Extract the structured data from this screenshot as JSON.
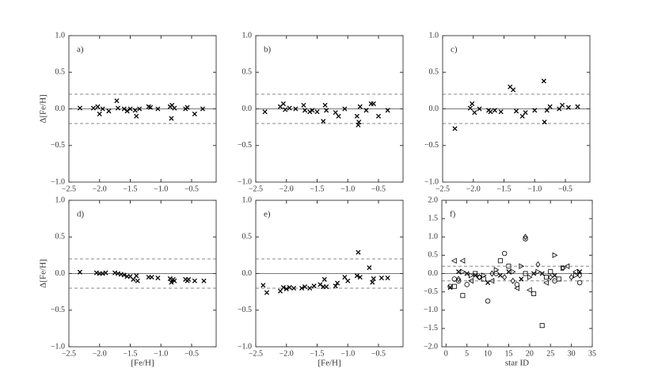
{
  "chart_data": [
    {
      "type": "scatter",
      "panel_label": "a)",
      "ylabel": "Δ[Fe/H]",
      "xlim": [
        -2.5,
        -0.1
      ],
      "ylim": [
        -1.0,
        1.0
      ],
      "xticks": [
        {
          "value": -2.5,
          "label": "−2.5"
        },
        {
          "value": -2.0,
          "label": "−2.0"
        },
        {
          "value": -1.5,
          "label": "−1.5"
        },
        {
          "value": -1.0,
          "label": "−1.0"
        },
        {
          "value": -0.5,
          "label": "−0.5"
        }
      ],
      "yticks": [
        {
          "value": -1.0,
          "label": "−1.0"
        },
        {
          "value": -0.5,
          "label": "−0.5"
        },
        {
          "value": 0.0,
          "label": "0.0"
        },
        0.5,
        {
          "value": 1.0,
          "label": "1.0"
        }
      ],
      "zero_line": 0,
      "dashed_lines": [
        0.2,
        -0.2
      ],
      "series": [
        {
          "marker": "x",
          "color": "#000",
          "x": [
            -2.32,
            -2.1,
            -2.03,
            -2.0,
            -1.95,
            -1.85,
            -1.72,
            -1.7,
            -1.6,
            -1.55,
            -1.5,
            -1.42,
            -1.4,
            -1.35,
            -1.2,
            -1.17,
            -1.05,
            -0.85,
            -0.83,
            -0.82,
            -0.78,
            -0.6,
            -0.57,
            -0.45,
            -0.32
          ],
          "y": [
            0.01,
            0.01,
            0.03,
            -0.07,
            0.0,
            -0.03,
            0.11,
            0.01,
            0.0,
            -0.03,
            0.0,
            -0.02,
            -0.1,
            0.0,
            0.03,
            0.02,
            0.0,
            0.03,
            -0.13,
            0.05,
            0.01,
            0.0,
            0.02,
            -0.07,
            0.0
          ]
        }
      ]
    },
    {
      "type": "scatter",
      "panel_label": "b)",
      "xlim": [
        -2.5,
        -0.1
      ],
      "ylim": [
        -1.0,
        1.0
      ],
      "xticks": [
        {
          "value": -2.5,
          "label": "−2.5"
        },
        {
          "value": -2.0,
          "label": "−2.0"
        },
        {
          "value": -1.5,
          "label": "−1.5"
        },
        {
          "value": -1.0,
          "label": "−1.0"
        },
        {
          "value": -0.5,
          "label": "−0.5"
        }
      ],
      "yticks": [
        {
          "value": -1.0,
          "label": "−1.0"
        },
        {
          "value": -0.5,
          "label": "−0.5"
        },
        {
          "value": 0.0,
          "label": "0.0"
        },
        0.5,
        {
          "value": 1.0,
          "label": "1.0"
        }
      ],
      "zero_line": 0,
      "dashed_lines": [
        0.2,
        -0.2
      ],
      "series": [
        {
          "marker": "x",
          "color": "#000",
          "x": [
            -2.35,
            -2.1,
            -2.05,
            -2.02,
            -1.95,
            -1.85,
            -1.72,
            -1.7,
            -1.62,
            -1.58,
            -1.5,
            -1.4,
            -1.37,
            -1.35,
            -1.2,
            -1.15,
            -1.05,
            -0.85,
            -0.83,
            -0.82,
            -0.8,
            -0.7,
            -0.62,
            -0.58,
            -0.5,
            -0.35
          ],
          "y": [
            -0.04,
            0.03,
            0.07,
            -0.01,
            0.01,
            0.0,
            0.05,
            -0.02,
            -0.04,
            -0.02,
            -0.04,
            -0.17,
            0.05,
            -0.02,
            -0.05,
            -0.1,
            0.0,
            -0.1,
            -0.22,
            -0.18,
            0.03,
            -0.02,
            0.07,
            0.07,
            -0.1,
            -0.02
          ]
        }
      ]
    },
    {
      "type": "scatter",
      "panel_label": "c)",
      "xlim": [
        -2.5,
        -0.1
      ],
      "ylim": [
        -1.0,
        1.0
      ],
      "xticks": [
        {
          "value": -2.5,
          "label": "−2.5"
        },
        {
          "value": -2.0,
          "label": "−2.0"
        },
        {
          "value": -1.5,
          "label": "−1.5"
        },
        {
          "value": -1.0,
          "label": "−1.0"
        },
        {
          "value": -0.5,
          "label": "−0.5"
        }
      ],
      "yticks": [
        {
          "value": -1.0,
          "label": "−1.0"
        },
        {
          "value": -0.5,
          "label": "−0.5"
        },
        {
          "value": 0.0,
          "label": "0.0"
        },
        0.5,
        {
          "value": 1.0,
          "label": "1.0"
        }
      ],
      "zero_line": 0,
      "dashed_lines": [
        0.2,
        -0.2
      ],
      "series": [
        {
          "marker": "x",
          "color": "#000",
          "x": [
            -2.3,
            -2.05,
            -2.02,
            -1.98,
            -1.9,
            -1.75,
            -1.72,
            -1.65,
            -1.55,
            -1.4,
            -1.35,
            -1.3,
            -1.2,
            -1.15,
            -1.0,
            -0.85,
            -0.84,
            -0.8,
            -0.75,
            -0.6,
            -0.55,
            -0.45,
            -0.3
          ],
          "y": [
            -0.27,
            0.01,
            0.07,
            -0.05,
            0.0,
            -0.02,
            -0.04,
            -0.02,
            -0.04,
            0.3,
            0.26,
            -0.03,
            -0.1,
            -0.05,
            -0.02,
            0.38,
            -0.18,
            -0.02,
            0.03,
            0.0,
            0.05,
            0.02,
            0.03
          ]
        }
      ]
    },
    {
      "type": "scatter",
      "panel_label": "d)",
      "ylabel": "Δ[Fe/H]",
      "xlabel": "[Fe/H]",
      "xlim": [
        -2.5,
        -0.1
      ],
      "ylim": [
        -1.0,
        1.0
      ],
      "xticks": [
        {
          "value": -2.5,
          "label": "−2.5"
        },
        {
          "value": -2.0,
          "label": "−2.0"
        },
        {
          "value": -1.5,
          "label": "−1.5"
        },
        {
          "value": -1.0,
          "label": "−1.0"
        },
        {
          "value": -0.5,
          "label": "−0.5"
        }
      ],
      "yticks": [
        {
          "value": -1.0,
          "label": "−1.0"
        },
        {
          "value": -0.5,
          "label": "−0.5"
        },
        {
          "value": 0.0,
          "label": "0.0"
        },
        0.5,
        {
          "value": 1.0,
          "label": "1.0"
        }
      ],
      "zero_line": 0,
      "dashed_lines": [
        0.2,
        -0.2
      ],
      "series": [
        {
          "marker": "x",
          "color": "#000",
          "x": [
            -2.32,
            -2.05,
            -2.0,
            -1.95,
            -1.9,
            -1.75,
            -1.7,
            -1.65,
            -1.6,
            -1.55,
            -1.5,
            -1.45,
            -1.4,
            -1.38,
            -1.2,
            -1.15,
            -1.05,
            -0.85,
            -0.83,
            -0.8,
            -0.78,
            -0.6,
            -0.57,
            -0.55,
            -0.45,
            -0.3
          ],
          "y": [
            0.02,
            0.01,
            0.0,
            0.0,
            0.01,
            0.01,
            0.0,
            -0.01,
            -0.02,
            -0.04,
            -0.04,
            -0.08,
            -0.03,
            -0.1,
            -0.05,
            -0.05,
            -0.06,
            -0.07,
            -0.12,
            -0.08,
            -0.1,
            -0.08,
            -0.1,
            -0.08,
            -0.1,
            -0.1
          ]
        }
      ]
    },
    {
      "type": "scatter",
      "panel_label": "e)",
      "xlabel": "[Fe/H]",
      "xlim": [
        -2.5,
        -0.1
      ],
      "ylim": [
        -1.0,
        1.0
      ],
      "xticks": [
        {
          "value": -2.5,
          "label": "−2.5"
        },
        {
          "value": -2.0,
          "label": "−2.0"
        },
        {
          "value": -1.5,
          "label": "−1.5"
        },
        {
          "value": -1.0,
          "label": "−1.0"
        },
        {
          "value": -0.5,
          "label": "−0.5"
        }
      ],
      "yticks": [
        {
          "value": -1.0,
          "label": "−1.0"
        },
        {
          "value": -0.5,
          "label": "−0.5"
        },
        {
          "value": 0.0,
          "label": "0.0"
        },
        0.5,
        {
          "value": 1.0,
          "label": "1.0"
        }
      ],
      "zero_line": 0,
      "dashed_lines": [
        0.2,
        -0.2
      ],
      "series": [
        {
          "marker": "x",
          "color": "#000",
          "x": [
            -2.38,
            -2.32,
            -2.1,
            -2.05,
            -2.0,
            -1.95,
            -1.88,
            -1.75,
            -1.7,
            -1.62,
            -1.55,
            -1.45,
            -1.4,
            -1.38,
            -1.35,
            -1.2,
            -1.17,
            -1.05,
            -1.0,
            -0.85,
            -0.83,
            -0.8,
            -0.65,
            -0.6,
            -0.58,
            -0.45,
            -0.35
          ],
          "y": [
            -0.16,
            -0.26,
            -0.24,
            -0.19,
            -0.21,
            -0.19,
            -0.2,
            -0.2,
            -0.18,
            -0.2,
            -0.17,
            -0.15,
            -0.18,
            -0.08,
            -0.18,
            -0.17,
            -0.13,
            -0.05,
            -0.1,
            -0.03,
            0.29,
            -0.05,
            0.08,
            -0.12,
            -0.07,
            -0.06,
            -0.06
          ]
        }
      ]
    },
    {
      "type": "scatter",
      "panel_label": "f)",
      "xlabel": "star ID",
      "xlim": [
        -1,
        35
      ],
      "ylim": [
        -2.0,
        2.0
      ],
      "xticks": [
        0,
        5,
        10,
        15,
        20,
        25,
        30,
        35
      ],
      "yticks": [
        {
          "value": -2.0,
          "label": "−2.0"
        },
        {
          "value": -1.5,
          "label": "−1.5"
        },
        {
          "value": -1.0,
          "label": "−1.0"
        },
        {
          "value": -0.5,
          "label": "−0.5"
        },
        {
          "value": 0.0,
          "label": "0.0"
        },
        0.5,
        {
          "value": 1.0,
          "label": "1.0"
        },
        1.5,
        {
          "value": 2.0,
          "label": "2.0"
        }
      ],
      "zero_line": 0,
      "dashed_lines": [
        0.2,
        -0.2
      ],
      "series": [
        {
          "marker": "circle",
          "color": "#000",
          "x": [
            1,
            2,
            3,
            5,
            8,
            10,
            12,
            14,
            17,
            19,
            26,
            32
          ],
          "y": [
            -0.35,
            -0.15,
            -0.2,
            -0.3,
            -0.1,
            -0.75,
            0.0,
            0.55,
            -0.3,
            0.95,
            -0.2,
            -0.25
          ]
        },
        {
          "marker": "square",
          "color": "#000",
          "x": [
            2,
            4,
            7,
            9,
            13,
            15,
            19,
            21,
            23,
            24,
            25,
            27
          ],
          "y": [
            -0.35,
            -0.6,
            0.0,
            -0.15,
            0.35,
            0.2,
            0.0,
            -0.55,
            -1.42,
            -0.1,
            0.05,
            -0.15
          ]
        },
        {
          "marker": "tri-right",
          "color": "#000",
          "x": [
            4,
            6,
            9,
            12,
            16,
            18,
            20,
            22,
            26,
            28,
            31
          ],
          "y": [
            0.05,
            -0.05,
            -0.05,
            0.1,
            0.05,
            0.2,
            -0.1,
            0.05,
            0.5,
            0.15,
            -0.05
          ]
        },
        {
          "marker": "tri-left",
          "color": "#000",
          "x": [
            2,
            4,
            6,
            11,
            17,
            20,
            24,
            29,
            31
          ],
          "y": [
            0.35,
            0.35,
            -0.2,
            -0.2,
            -0.4,
            -0.45,
            -0.25,
            0.2,
            0.05
          ]
        },
        {
          "marker": "diamond",
          "color": "#000",
          "x": [
            3,
            8,
            11,
            14,
            16,
            19,
            22,
            25,
            28,
            30,
            32
          ],
          "y": [
            -0.15,
            -0.1,
            0.0,
            -0.1,
            -0.2,
            1.0,
            0.25,
            -0.1,
            0.15,
            -0.1,
            -0.05
          ]
        },
        {
          "marker": "x",
          "color": "#000",
          "x": [
            1,
            3,
            5,
            7,
            10,
            13,
            15,
            18,
            21,
            23,
            26,
            32
          ],
          "y": [
            -0.38,
            0.05,
            0.0,
            -0.05,
            -0.25,
            -0.05,
            0.05,
            -0.15,
            0.0,
            0.0,
            -0.05,
            0.05
          ]
        }
      ]
    }
  ]
}
